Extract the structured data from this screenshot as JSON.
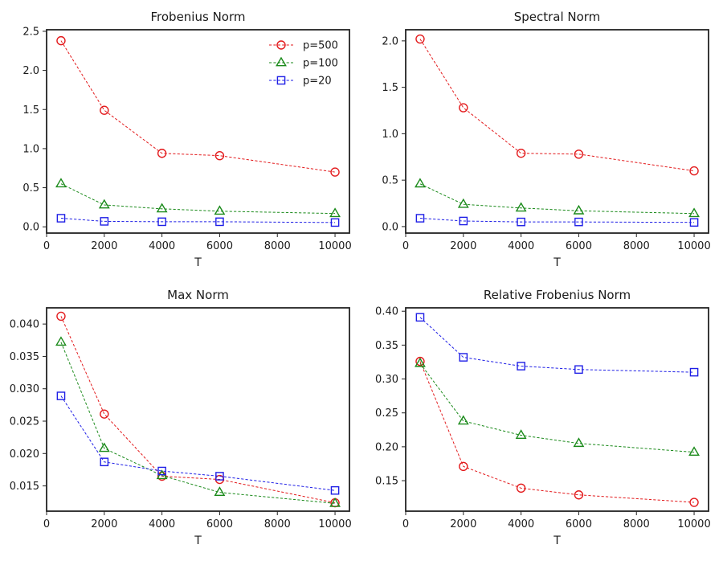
{
  "figure_title": "",
  "series_styles": [
    {
      "name": "p=500",
      "color": "#e31a1c",
      "marker": "circle"
    },
    {
      "name": "p=100",
      "color": "#1a8a1a",
      "marker": "triangle"
    },
    {
      "name": "p=20",
      "color": "#1f1fe6",
      "marker": "square"
    }
  ],
  "chart_data": [
    {
      "id": "frobenius",
      "type": "line",
      "title": "Frobenius Norm",
      "xlabel": "T",
      "ylabel": "",
      "x": [
        500,
        2000,
        4000,
        6000,
        10000
      ],
      "xlim": [
        0,
        10500
      ],
      "ylim": [
        -0.08,
        2.52
      ],
      "xticks": [
        0,
        2000,
        4000,
        6000,
        8000,
        10000
      ],
      "xtick_labels": [
        "0",
        "2000",
        "4000",
        "6000",
        "8000",
        "10000"
      ],
      "yticks": [
        0,
        0.5,
        1.0,
        1.5,
        2.0,
        2.5
      ],
      "ytick_labels": [
        "0.0",
        "0.5",
        "1.0",
        "1.5",
        "2.0",
        "2.5"
      ],
      "legend": "top-right",
      "series": [
        {
          "name": "p=500",
          "values": [
            2.38,
            1.49,
            0.94,
            0.91,
            0.7
          ]
        },
        {
          "name": "p=100",
          "values": [
            0.55,
            0.28,
            0.23,
            0.2,
            0.17
          ]
        },
        {
          "name": "p=20",
          "values": [
            0.11,
            0.07,
            0.065,
            0.065,
            0.055
          ]
        }
      ]
    },
    {
      "id": "spectral",
      "type": "line",
      "title": "Spectral Norm",
      "xlabel": "T",
      "ylabel": "",
      "x": [
        500,
        2000,
        4000,
        6000,
        10000
      ],
      "xlim": [
        0,
        10500
      ],
      "ylim": [
        -0.07,
        2.12
      ],
      "xticks": [
        0,
        2000,
        4000,
        6000,
        8000,
        10000
      ],
      "xtick_labels": [
        "0",
        "2000",
        "4000",
        "6000",
        "8000",
        "10000"
      ],
      "yticks": [
        0,
        0.5,
        1.0,
        1.5,
        2.0
      ],
      "ytick_labels": [
        "0.0",
        "0.5",
        "1.0",
        "1.5",
        "2.0"
      ],
      "legend": "none",
      "series": [
        {
          "name": "p=500",
          "values": [
            2.02,
            1.28,
            0.79,
            0.78,
            0.6
          ]
        },
        {
          "name": "p=100",
          "values": [
            0.46,
            0.24,
            0.2,
            0.17,
            0.14
          ]
        },
        {
          "name": "p=20",
          "values": [
            0.09,
            0.06,
            0.05,
            0.05,
            0.045
          ]
        }
      ]
    },
    {
      "id": "max",
      "type": "line",
      "title": "Max Norm",
      "xlabel": "T",
      "ylabel": "",
      "x": [
        500,
        2000,
        4000,
        6000,
        10000
      ],
      "xlim": [
        0,
        10500
      ],
      "ylim": [
        0.0111,
        0.0425
      ],
      "xticks": [
        0,
        2000,
        4000,
        6000,
        8000,
        10000
      ],
      "xtick_labels": [
        "0",
        "2000",
        "4000",
        "6000",
        "8000",
        "10000"
      ],
      "yticks": [
        0.015,
        0.02,
        0.025,
        0.03,
        0.035,
        0.04
      ],
      "ytick_labels": [
        "0.015",
        "0.020",
        "0.025",
        "0.030",
        "0.035",
        "0.040"
      ],
      "legend": "none",
      "series": [
        {
          "name": "p=500",
          "values": [
            0.0412,
            0.0261,
            0.0165,
            0.016,
            0.0124
          ]
        },
        {
          "name": "p=100",
          "values": [
            0.0372,
            0.0208,
            0.0166,
            0.014,
            0.0123
          ]
        },
        {
          "name": "p=20",
          "values": [
            0.0289,
            0.0187,
            0.0173,
            0.0165,
            0.0143
          ]
        }
      ]
    },
    {
      "id": "relative_frobenius",
      "type": "line",
      "title": "Relative Frobenius Norm",
      "xlabel": "T",
      "ylabel": "",
      "x": [
        500,
        2000,
        4000,
        6000,
        10000
      ],
      "xlim": [
        0,
        10500
      ],
      "ylim": [
        0.105,
        0.405
      ],
      "xticks": [
        0,
        2000,
        4000,
        6000,
        8000,
        10000
      ],
      "xtick_labels": [
        "0",
        "2000",
        "4000",
        "6000",
        "8000",
        "10000"
      ],
      "yticks": [
        0.15,
        0.2,
        0.25,
        0.3,
        0.35,
        0.4
      ],
      "ytick_labels": [
        "0.15",
        "0.20",
        "0.25",
        "0.30",
        "0.35",
        "0.40"
      ],
      "legend": "none",
      "series": [
        {
          "name": "p=500",
          "values": [
            0.326,
            0.171,
            0.139,
            0.129,
            0.118
          ]
        },
        {
          "name": "p=100",
          "values": [
            0.323,
            0.238,
            0.217,
            0.205,
            0.192
          ]
        },
        {
          "name": "p=20",
          "values": [
            0.391,
            0.332,
            0.319,
            0.314,
            0.31
          ]
        }
      ]
    }
  ]
}
